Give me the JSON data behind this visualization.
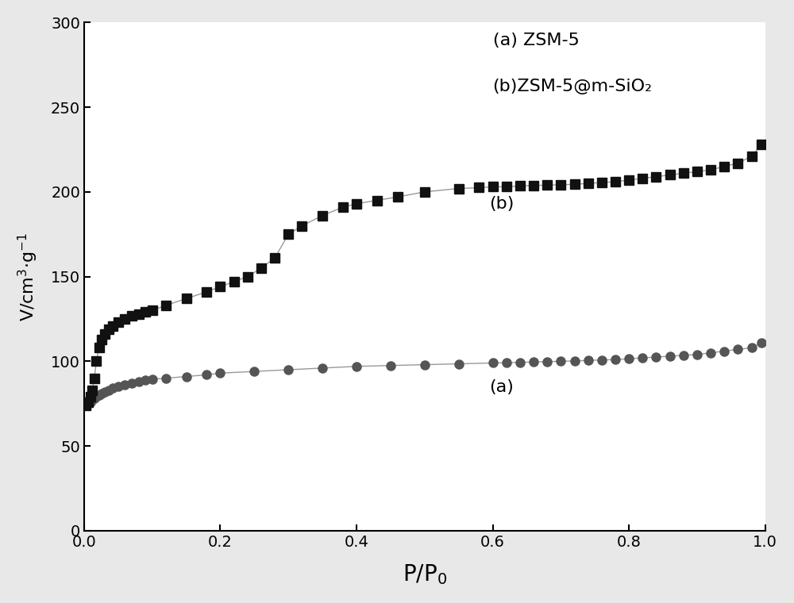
{
  "title": "",
  "xlabel": "P/P$_0$",
  "ylabel": "V/cm$^3$·g$^{-1}$",
  "xlim": [
    0,
    1.0
  ],
  "ylim": [
    0,
    300
  ],
  "yticks": [
    0,
    50,
    100,
    150,
    200,
    250,
    300
  ],
  "xticks": [
    0.0,
    0.2,
    0.4,
    0.6,
    0.8,
    1.0
  ],
  "legend_text_a": "(a) ZSM-5",
  "legend_text_b": "(b)ZSM-5@m-SiO₂",
  "label_a": "(a)",
  "label_b": "(b)",
  "series_a_x": [
    0.003,
    0.006,
    0.009,
    0.012,
    0.015,
    0.018,
    0.022,
    0.026,
    0.03,
    0.036,
    0.042,
    0.05,
    0.06,
    0.07,
    0.08,
    0.09,
    0.1,
    0.12,
    0.15,
    0.18,
    0.2,
    0.25,
    0.3,
    0.35,
    0.4,
    0.45,
    0.5,
    0.55,
    0.6,
    0.62,
    0.64,
    0.66,
    0.68,
    0.7,
    0.72,
    0.74,
    0.76,
    0.78,
    0.8,
    0.82,
    0.84,
    0.86,
    0.88,
    0.9,
    0.92,
    0.94,
    0.96,
    0.98,
    0.995
  ],
  "series_a_y": [
    74,
    75,
    76,
    77,
    78,
    79,
    80,
    81,
    82,
    83,
    84,
    85,
    86,
    87,
    88,
    89,
    89.5,
    90,
    91,
    92,
    93,
    94,
    95,
    96,
    97,
    97.5,
    98,
    98.5,
    99,
    99.2,
    99.4,
    99.6,
    99.8,
    100,
    100.2,
    100.5,
    100.8,
    101,
    101.5,
    102,
    102.5,
    103,
    103.5,
    104,
    105,
    106,
    107,
    108,
    111
  ],
  "series_b_x": [
    0.003,
    0.006,
    0.009,
    0.012,
    0.015,
    0.018,
    0.022,
    0.026,
    0.03,
    0.036,
    0.042,
    0.05,
    0.06,
    0.07,
    0.08,
    0.09,
    0.1,
    0.12,
    0.15,
    0.18,
    0.2,
    0.22,
    0.24,
    0.26,
    0.28,
    0.3,
    0.32,
    0.35,
    0.38,
    0.4,
    0.43,
    0.46,
    0.5,
    0.55,
    0.58,
    0.6,
    0.62,
    0.64,
    0.66,
    0.68,
    0.7,
    0.72,
    0.74,
    0.76,
    0.78,
    0.8,
    0.82,
    0.84,
    0.86,
    0.88,
    0.9,
    0.92,
    0.94,
    0.96,
    0.98,
    0.995
  ],
  "series_b_y": [
    74,
    76,
    79,
    83,
    90,
    100,
    108,
    113,
    116,
    119,
    121,
    123,
    125,
    127,
    128,
    129,
    130,
    133,
    137,
    141,
    144,
    147,
    150,
    155,
    161,
    175,
    180,
    186,
    191,
    193,
    195,
    197,
    200,
    202,
    202.5,
    203,
    203,
    203.5,
    203.8,
    204,
    204.2,
    204.5,
    205,
    205.5,
    206,
    207,
    208,
    209,
    210,
    211,
    212,
    213,
    215,
    217,
    221,
    228
  ],
  "line_color": "#999999",
  "marker_color_a": "#555555",
  "marker_color_b": "#111111",
  "background_color": "#ffffff",
  "fig_background": "#e8e8e8"
}
